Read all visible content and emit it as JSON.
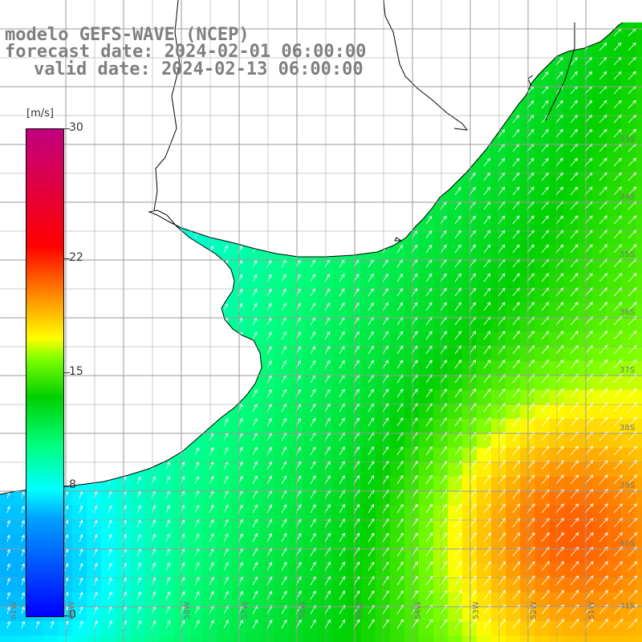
{
  "titles": {
    "line1": "modelo GEFS-WAVE (NCEP)",
    "line2": "forecast date: 2024-02-01 06:00:00",
    "line3": "valid date: 2024-02-13 06:00:00"
  },
  "colorbar": {
    "unit": "[m/s]",
    "ticks": [
      "30",
      "22",
      "15",
      "8",
      "0"
    ],
    "tick_values": [
      30,
      22,
      15,
      8,
      0
    ]
  },
  "lat_labels": [
    "33S",
    "34S",
    "35S",
    "36S",
    "37S",
    "38S",
    "39S",
    "40S",
    "41S"
  ],
  "lon_labels": [
    "61W",
    "60W",
    "58W",
    "57W",
    "56W",
    "55W",
    "54W",
    "53W",
    "52W",
    "51W"
  ],
  "colors": {
    "land": "#ffffff",
    "coast": "#000000",
    "grid": "#9a9a9a",
    "arrows": "#ffffff",
    "title_text": "#7f7f7f"
  },
  "map_data": {
    "field": "wind speed",
    "units": "m/s",
    "range": [
      0,
      30
    ],
    "arrow_direction": "toward northeast"
  }
}
